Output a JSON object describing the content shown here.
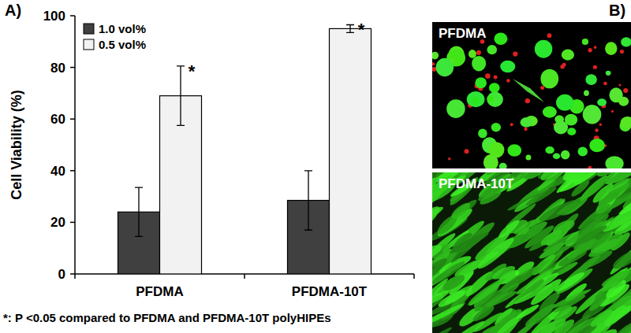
{
  "chart_data": {
    "type": "bar",
    "panel_label": "A)",
    "y_label": "Cell Viability (%)",
    "categories": [
      "PFDMA",
      "PFDMA-10T"
    ],
    "series": [
      {
        "name": "1.0 vol%",
        "color": "#404040",
        "values": [
          24,
          28.5
        ],
        "errors": [
          9.5,
          11.5
        ]
      },
      {
        "name": "0.5 vol%",
        "color": "#f2f2f2",
        "values": [
          69,
          95
        ],
        "errors": [
          11.5,
          1.5
        ]
      }
    ],
    "annotations": [
      {
        "text": "*",
        "category": 0,
        "series": 1
      },
      {
        "text": "*",
        "category": 1,
        "series": 1
      }
    ],
    "footnote": "*:  P <0.05 compared to PFDMA and PFDMA-10T polyHIPEs",
    "ylim": [
      0,
      100
    ],
    "yticks": [
      0,
      20,
      40,
      60,
      80,
      100
    ],
    "grid": false,
    "legend": "upper left"
  },
  "images": {
    "panel_label": "B)",
    "panels": [
      {
        "label": "PFDMA"
      },
      {
        "label": "PFDMA-10T"
      }
    ]
  }
}
